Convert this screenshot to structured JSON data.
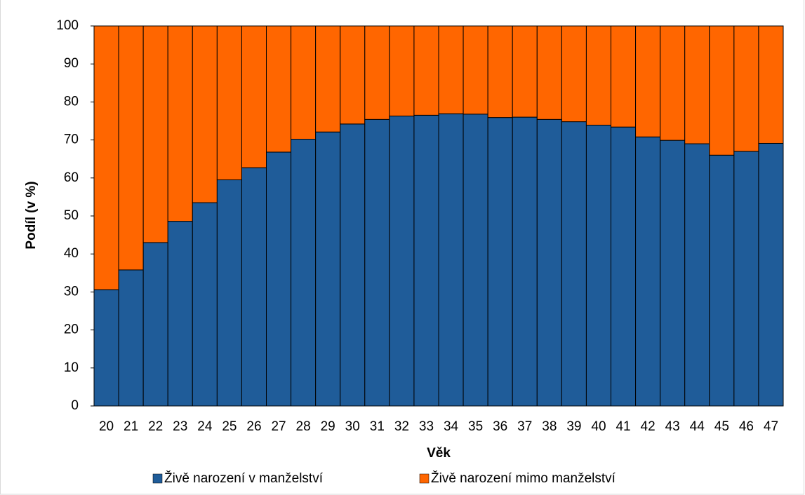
{
  "chart_data": {
    "type": "stacked_bar",
    "x_label": "Věk",
    "y_label": "Podíl (v %)",
    "categories": [
      "20",
      "21",
      "22",
      "23",
      "24",
      "25",
      "26",
      "27",
      "28",
      "29",
      "30",
      "31",
      "32",
      "33",
      "34",
      "35",
      "36",
      "37",
      "38",
      "39",
      "40",
      "41",
      "42",
      "43",
      "44",
      "45",
      "46",
      "47"
    ],
    "series": [
      {
        "name": "Živě narození v manželství",
        "color": "#1f5c99",
        "values": [
          30.6,
          35.8,
          43,
          48.6,
          53.5,
          59.5,
          62.7,
          66.8,
          70.2,
          72.1,
          74.2,
          75.4,
          76.3,
          76.5,
          76.9,
          76.8,
          75.9,
          76.0,
          75.4,
          74.8,
          73.9,
          73.4,
          70.8,
          69.9,
          69.0,
          66.0,
          67.0,
          69.1
        ]
      },
      {
        "name": "Živě narození mimo manželství",
        "color": "#ff6600",
        "values": [
          69.4,
          64.2,
          57,
          51.4,
          46.5,
          40.5,
          37.3,
          33.2,
          29.8,
          27.9,
          25.8,
          24.6,
          23.7,
          23.5,
          23.1,
          23.2,
          24.1,
          24.0,
          24.6,
          25.2,
          26.1,
          26.6,
          29.2,
          30.1,
          31.0,
          34.0,
          33.0,
          30.9
        ]
      }
    ],
    "ylim": [
      0,
      100
    ],
    "yticks": [
      0,
      10,
      20,
      30,
      40,
      50,
      60,
      70,
      80,
      90,
      100
    ],
    "legend": "bottom"
  }
}
